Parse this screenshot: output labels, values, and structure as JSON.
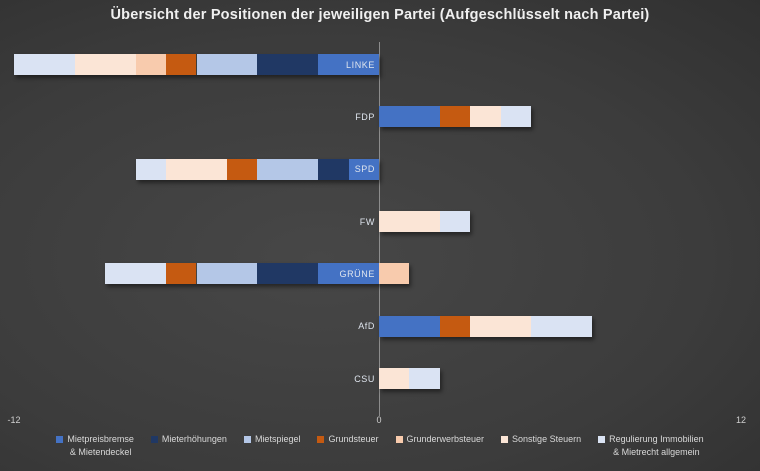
{
  "title": "Übersicht der Positionen der jeweiligen Partei (Aufgeschlüsselt nach Partei)",
  "axis": {
    "min": -12,
    "max": 12,
    "min_label": "-12",
    "zero_label": "0",
    "max_label": "12"
  },
  "colors": {
    "background_center": "#474747",
    "background_edge": "#232323",
    "axis_line": "#a0a0a0",
    "title_text": "#f0f0f0",
    "label_text": "#d9d9d9"
  },
  "chart_data": {
    "type": "bar",
    "orientation": "horizontal",
    "stacked": true,
    "diverging": true,
    "title": "Übersicht der Positionen der jeweiligen Partei (Aufgeschlüsselt nach Partei)",
    "xlabel": "",
    "ylabel": "",
    "xlim": [
      -12,
      12
    ],
    "grid": false,
    "legend_position": "bottom",
    "categories": [
      "LINKE",
      "FDP",
      "SPD",
      "FW",
      "GRÜNE",
      "AfD",
      "CSU"
    ],
    "series": [
      {
        "name": "Mietpreisbremse & Mietendeckel",
        "color": "#4472C4",
        "values": [
          -2,
          2,
          -1,
          0,
          -2,
          2,
          0
        ]
      },
      {
        "name": "Mieterhöhungen",
        "color": "#203864",
        "values": [
          -2,
          0,
          -1,
          0,
          -2,
          0,
          0
        ]
      },
      {
        "name": "Mietspiegel",
        "color": "#B4C7E7",
        "values": [
          -2,
          0,
          -2,
          0,
          -2,
          0,
          0
        ]
      },
      {
        "name": "Grundsteuer",
        "color": "#C55A11",
        "values": [
          -1,
          1,
          -1,
          0,
          -1,
          1,
          0
        ]
      },
      {
        "name": "Grunderwerbsteuer",
        "color": "#F8CBAD",
        "values": [
          -1,
          0,
          0,
          0,
          1,
          0,
          0
        ]
      },
      {
        "name": "Sonstige Steuern",
        "color": "#FBE5D6",
        "values": [
          -2,
          1,
          -2,
          2,
          0,
          2,
          1
        ]
      },
      {
        "name": "Regulierung Immobilien & Mietrecht allgemein",
        "color": "#DAE3F3",
        "values": [
          -2,
          1,
          -1,
          1,
          -2,
          2,
          1
        ]
      }
    ]
  },
  "legend": {
    "items": [
      {
        "label": "Mietpreisbremse",
        "label2": "& Mietendeckel",
        "color": "#4472C4"
      },
      {
        "label": "Mieterhöhungen",
        "label2": "",
        "color": "#203864"
      },
      {
        "label": "Mietspiegel",
        "label2": "",
        "color": "#B4C7E7"
      },
      {
        "label": "Grundsteuer",
        "label2": "",
        "color": "#C55A11"
      },
      {
        "label": "Grunderwerbsteuer",
        "label2": "",
        "color": "#F8CBAD"
      },
      {
        "label": "Sonstige Steuern",
        "label2": "",
        "color": "#FBE5D6"
      },
      {
        "label": "Regulierung Immobilien",
        "label2": "& Mietrecht allgemein",
        "color": "#DAE3F3"
      }
    ]
  }
}
